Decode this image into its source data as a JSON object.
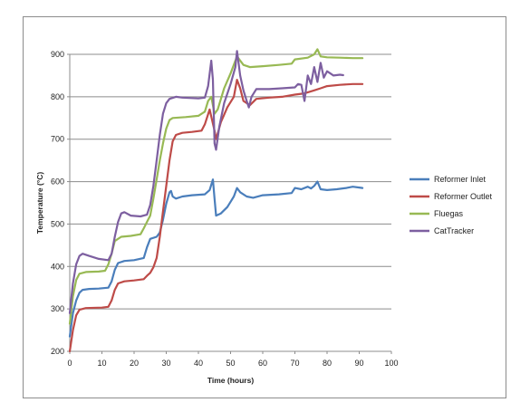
{
  "chart_data": {
    "type": "line",
    "title": "",
    "xlabel": "Time (hours)",
    "ylabel": "Temperature (°C)",
    "xlim": [
      0,
      100
    ],
    "ylim": [
      200,
      900
    ],
    "xticks": [
      "0",
      "10",
      "20",
      "30",
      "40",
      "50",
      "60",
      "70",
      "80",
      "90",
      "100"
    ],
    "yticks": [
      "200",
      "300",
      "400",
      "500",
      "600",
      "700",
      "800",
      "900"
    ],
    "grid": "horizontal",
    "legend": "right",
    "series": [
      {
        "name": "Reformer Inlet",
        "color": "#4a7ebb",
        "points": [
          [
            0,
            235
          ],
          [
            1,
            290
          ],
          [
            2,
            320
          ],
          [
            3,
            338
          ],
          [
            4,
            345
          ],
          [
            6,
            347
          ],
          [
            9,
            348
          ],
          [
            12,
            350
          ],
          [
            13,
            365
          ],
          [
            14,
            392
          ],
          [
            15,
            408
          ],
          [
            17,
            413
          ],
          [
            20,
            415
          ],
          [
            23,
            420
          ],
          [
            24,
            445
          ],
          [
            25,
            465
          ],
          [
            27,
            470
          ],
          [
            28,
            480
          ],
          [
            29,
            510
          ],
          [
            30,
            548
          ],
          [
            31,
            575
          ],
          [
            31.5,
            578
          ],
          [
            32,
            565
          ],
          [
            33,
            560
          ],
          [
            35,
            565
          ],
          [
            38,
            568
          ],
          [
            42,
            570
          ],
          [
            43.5,
            580
          ],
          [
            44.5,
            605
          ],
          [
            45,
            560
          ],
          [
            45.5,
            520
          ],
          [
            47,
            525
          ],
          [
            49,
            540
          ],
          [
            51,
            565
          ],
          [
            52,
            585
          ],
          [
            53,
            575
          ],
          [
            55,
            565
          ],
          [
            57,
            562
          ],
          [
            60,
            568
          ],
          [
            65,
            570
          ],
          [
            69,
            573
          ],
          [
            70,
            585
          ],
          [
            72,
            582
          ],
          [
            74,
            588
          ],
          [
            75,
            584
          ],
          [
            76,
            590
          ],
          [
            77,
            600
          ],
          [
            78,
            582
          ],
          [
            80,
            580
          ],
          [
            83,
            582
          ],
          [
            86,
            585
          ],
          [
            88,
            588
          ],
          [
            90,
            586
          ],
          [
            91,
            585
          ]
        ]
      },
      {
        "name": "Reformer Outlet",
        "color": "#be4b48",
        "points": [
          [
            0,
            200
          ],
          [
            1,
            250
          ],
          [
            2,
            285
          ],
          [
            3,
            298
          ],
          [
            5,
            302
          ],
          [
            10,
            303
          ],
          [
            12,
            305
          ],
          [
            13,
            320
          ],
          [
            14,
            345
          ],
          [
            15,
            360
          ],
          [
            17,
            365
          ],
          [
            20,
            367
          ],
          [
            23,
            370
          ],
          [
            24,
            378
          ],
          [
            25,
            385
          ],
          [
            26,
            398
          ],
          [
            27,
            420
          ],
          [
            28,
            470
          ],
          [
            29,
            530
          ],
          [
            30,
            590
          ],
          [
            31,
            650
          ],
          [
            32,
            695
          ],
          [
            33,
            710
          ],
          [
            35,
            715
          ],
          [
            38,
            717
          ],
          [
            41,
            720
          ],
          [
            42,
            735
          ],
          [
            43.5,
            770
          ],
          [
            45,
            720
          ],
          [
            45.5,
            700
          ],
          [
            47,
            740
          ],
          [
            49,
            775
          ],
          [
            51,
            800
          ],
          [
            52,
            840
          ],
          [
            53,
            820
          ],
          [
            54,
            790
          ],
          [
            56,
            780
          ],
          [
            58,
            795
          ],
          [
            62,
            798
          ],
          [
            66,
            800
          ],
          [
            70,
            805
          ],
          [
            73,
            808
          ],
          [
            76,
            815
          ],
          [
            78,
            820
          ],
          [
            80,
            825
          ],
          [
            84,
            828
          ],
          [
            88,
            830
          ],
          [
            91,
            830
          ]
        ]
      },
      {
        "name": "Fluegas",
        "color": "#98b954",
        "points": [
          [
            0,
            265
          ],
          [
            1,
            330
          ],
          [
            2,
            368
          ],
          [
            3,
            383
          ],
          [
            5,
            387
          ],
          [
            9,
            388
          ],
          [
            11,
            390
          ],
          [
            12,
            405
          ],
          [
            13,
            430
          ],
          [
            14,
            460
          ],
          [
            16,
            470
          ],
          [
            19,
            472
          ],
          [
            22,
            476
          ],
          [
            23,
            490
          ],
          [
            24,
            505
          ],
          [
            25,
            520
          ],
          [
            26,
            560
          ],
          [
            27,
            605
          ],
          [
            28,
            650
          ],
          [
            29,
            690
          ],
          [
            30,
            725
          ],
          [
            31,
            745
          ],
          [
            32,
            750
          ],
          [
            36,
            752
          ],
          [
            40,
            755
          ],
          [
            42,
            765
          ],
          [
            43,
            790
          ],
          [
            44,
            800
          ],
          [
            45,
            760
          ],
          [
            46,
            770
          ],
          [
            48,
            820
          ],
          [
            50,
            855
          ],
          [
            52,
            895
          ],
          [
            54,
            875
          ],
          [
            56,
            870
          ],
          [
            60,
            872
          ],
          [
            65,
            875
          ],
          [
            69,
            878
          ],
          [
            70,
            888
          ],
          [
            74,
            892
          ],
          [
            76,
            900
          ],
          [
            77,
            912
          ],
          [
            78,
            895
          ],
          [
            80,
            893
          ],
          [
            84,
            892
          ],
          [
            88,
            891
          ],
          [
            91,
            891
          ]
        ]
      },
      {
        "name": "CatTracker",
        "color": "#7d5fa0",
        "points": [
          [
            0,
            290
          ],
          [
            1,
            360
          ],
          [
            2,
            405
          ],
          [
            3,
            425
          ],
          [
            4,
            430
          ],
          [
            6,
            425
          ],
          [
            9,
            418
          ],
          [
            12,
            415
          ],
          [
            13,
            430
          ],
          [
            14,
            470
          ],
          [
            15,
            505
          ],
          [
            16,
            525
          ],
          [
            17,
            528
          ],
          [
            19,
            520
          ],
          [
            22,
            518
          ],
          [
            24,
            522
          ],
          [
            25,
            545
          ],
          [
            26,
            590
          ],
          [
            27,
            650
          ],
          [
            28,
            710
          ],
          [
            29,
            760
          ],
          [
            30,
            785
          ],
          [
            31,
            795
          ],
          [
            33,
            800
          ],
          [
            35,
            798
          ],
          [
            38,
            797
          ],
          [
            40,
            796
          ],
          [
            42,
            798
          ],
          [
            43,
            825
          ],
          [
            44,
            885
          ],
          [
            44.5,
            840
          ],
          [
            45,
            690
          ],
          [
            45.5,
            675
          ],
          [
            46.5,
            730
          ],
          [
            48,
            785
          ],
          [
            50,
            830
          ],
          [
            51.5,
            870
          ],
          [
            52,
            908
          ],
          [
            53,
            850
          ],
          [
            54,
            815
          ],
          [
            55,
            790
          ],
          [
            55.7,
            775
          ],
          [
            56.5,
            800
          ],
          [
            58,
            818
          ],
          [
            62,
            818
          ],
          [
            66,
            820
          ],
          [
            70,
            822
          ],
          [
            71,
            830
          ],
          [
            72,
            828
          ],
          [
            73,
            790
          ],
          [
            74,
            850
          ],
          [
            75,
            830
          ],
          [
            76,
            870
          ],
          [
            77,
            835
          ],
          [
            78,
            880
          ],
          [
            79,
            845
          ],
          [
            80,
            860
          ],
          [
            81,
            855
          ],
          [
            82,
            850
          ],
          [
            84,
            852
          ],
          [
            85,
            851
          ]
        ]
      }
    ]
  }
}
